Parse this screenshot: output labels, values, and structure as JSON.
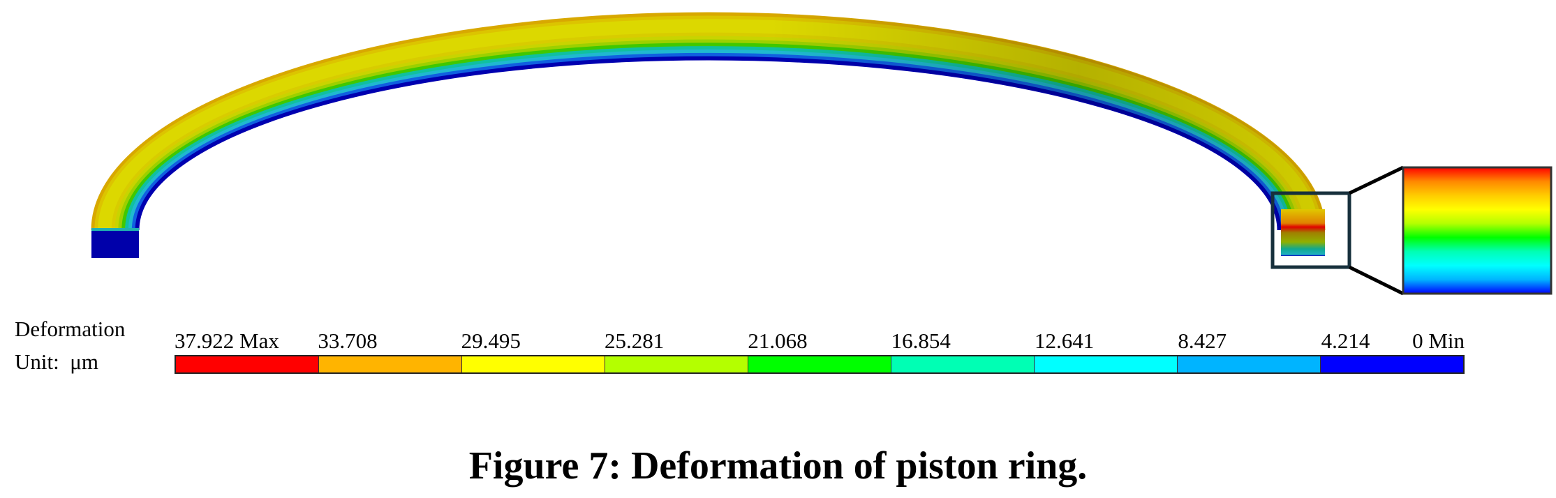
{
  "figure": {
    "caption": "Figure 7: Deformation of piston ring."
  },
  "legend": {
    "title": "Deformation",
    "unit": "Unit:  μm",
    "labels": [
      "37.922 Max",
      "33.708",
      "29.495",
      "25.281",
      "21.068",
      "16.854",
      "12.641",
      "8.427",
      "4.214",
      "0 Min"
    ],
    "colors": [
      "#ff0000",
      "#ffb400",
      "#ffff00",
      "#b4ff00",
      "#00ff00",
      "#00ffb4",
      "#00ffff",
      "#00b4ff",
      "#0000ff"
    ]
  },
  "inset": {
    "gradient_colors": [
      "#ff0000",
      "#ff8800",
      "#ffcc00",
      "#ffff00",
      "#b4ff00",
      "#00ff00",
      "#00ffb4",
      "#00ffff",
      "#00b4ff",
      "#0000ff"
    ]
  }
}
